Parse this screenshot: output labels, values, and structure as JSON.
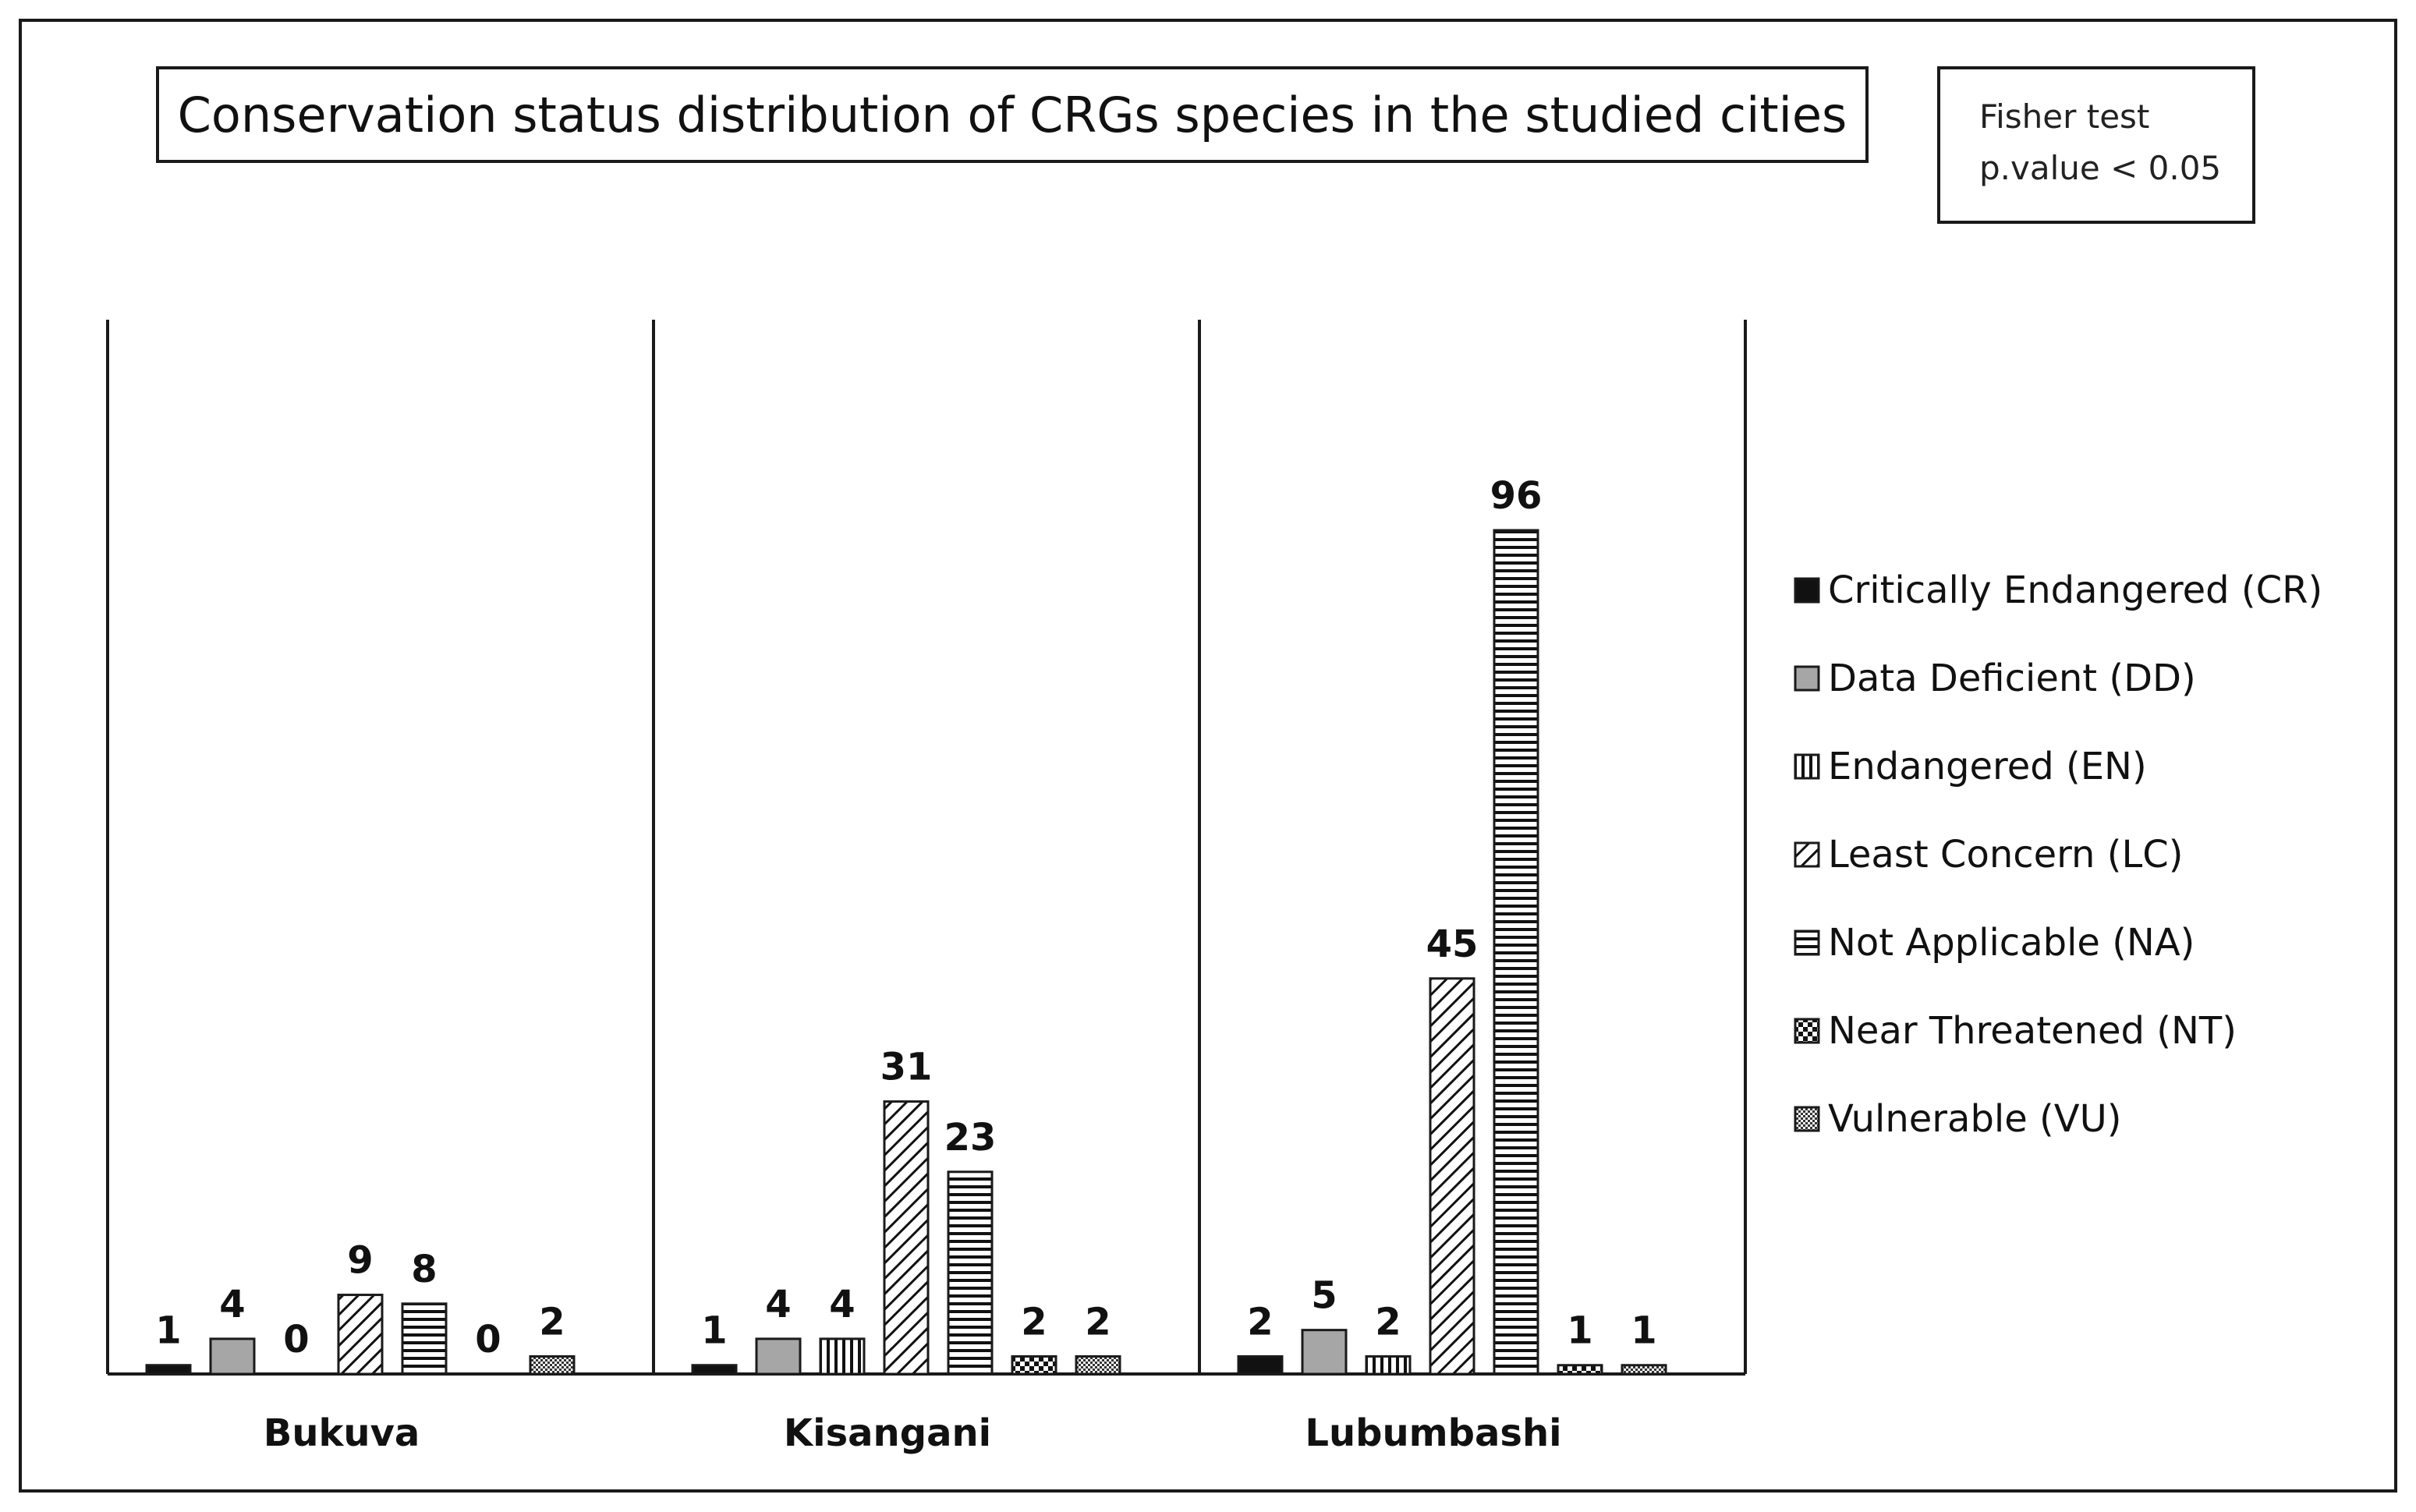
{
  "chart_data": {
    "type": "bar",
    "title": "Conservation status distribution of CRGs species in the studied cities",
    "annotation": [
      "Fisher test",
      "p.value < 0.05"
    ],
    "categories": [
      "Bukuva",
      "Kisangani",
      "Lubumbashi"
    ],
    "ylim": [
      0,
      110
    ],
    "legend_position": "right",
    "series": [
      {
        "name": "Critically Endangered (CR)",
        "pattern": "solid-black",
        "values": [
          1,
          1,
          2
        ]
      },
      {
        "name": "Data Deficient (DD)",
        "pattern": "solid-gray",
        "values": [
          4,
          4,
          5
        ]
      },
      {
        "name": "Endangered (EN)",
        "pattern": "vertical-lines",
        "values": [
          0,
          4,
          2
        ]
      },
      {
        "name": "Least Concern (LC)",
        "pattern": "diagonal-lines",
        "values": [
          9,
          31,
          45
        ]
      },
      {
        "name": "Not Applicable (NA)",
        "pattern": "horizontal-lines",
        "values": [
          8,
          23,
          96
        ]
      },
      {
        "name": "Near Threatened (NT)",
        "pattern": "checker",
        "values": [
          0,
          2,
          1
        ]
      },
      {
        "name": "Vulnerable (VU)",
        "pattern": "fine-checker",
        "values": [
          2,
          2,
          1
        ]
      }
    ],
    "colors": {
      "black": "#111111",
      "gray": "#a6a6a6",
      "frame": "#1a1a1a"
    }
  }
}
